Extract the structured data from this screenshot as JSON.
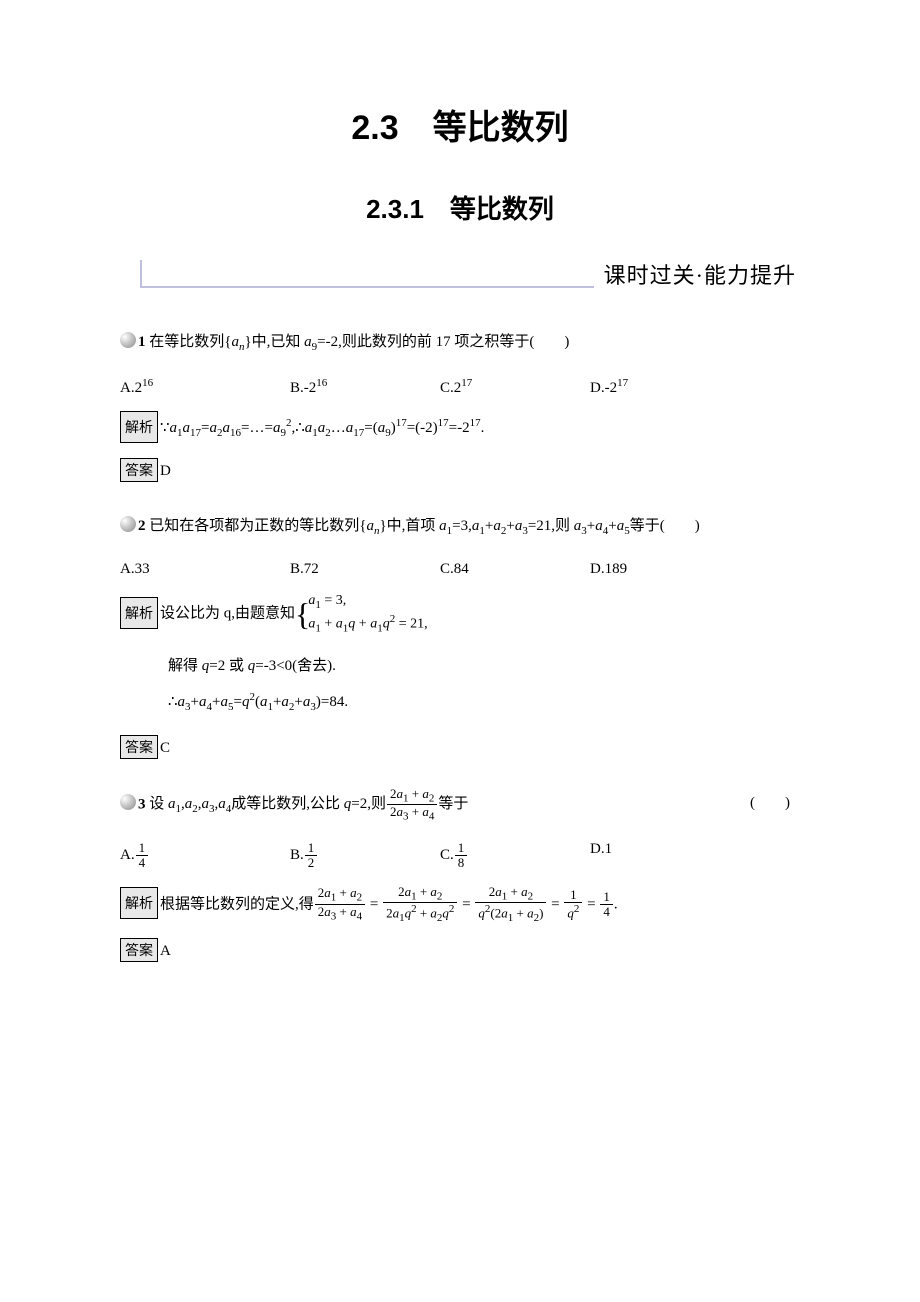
{
  "title": {
    "main": "2.3　等比数列",
    "sub": "2.3.1　等比数列",
    "section": "课时过关·能力提升"
  },
  "labels": {
    "analysis": "解析",
    "answer": "答案"
  },
  "q1": {
    "num": "1",
    "stem_before": " 在等比数列{",
    "stem_an": "a",
    "stem_after": "}中,已知 ",
    "stem_a9": "a",
    "stem_eq": "=-2,则此数列的前 17 项之积等于(　　)",
    "opts": {
      "A": "A.2",
      "A_sup": "16",
      "B": "B.-2",
      "B_sup": "16",
      "C": "C.2",
      "C_sup": "17",
      "D": "D.-2",
      "D_sup": "17"
    },
    "analysis": "∵a₁a₁₇=a₂a₁₆=…=a₉²,∴a₁a₂…a₁₇=(a₉)¹⁷=(-2)¹⁷=-2¹⁷.",
    "answer": "D"
  },
  "q2": {
    "num": "2",
    "stem": " 已知在各项都为正数的等比数列{aₙ}中,首项 a₁=3,a₁+a₂+a₃=21,则 a₃+a₄+a₅等于(　　)",
    "opts": {
      "A": "A.33",
      "B": "B.72",
      "C": "C.84",
      "D": "D.189"
    },
    "analysis_prefix": "设公比为 q,由题意知",
    "brace_line1": "a₁ = 3,",
    "brace_line2": "a₁ + a₁q + a₁q² = 21,",
    "line2": "解得 q=2 或 q=-3<0(舍去).",
    "line3": "∴a₃+a₄+a₅=q²(a₁+a₂+a₃)=84.",
    "answer": "C"
  },
  "q3": {
    "num": "3",
    "stem_before": " 设 a₁,a₂,a₃,a₄成等比数列,公比 q=2,则",
    "frac_top": "2a₁ + a₂",
    "frac_bot": "2a₃ + a₄",
    "stem_after": "等于",
    "paren": "(　　)",
    "opts": {
      "A_num": "1",
      "A_den": "4",
      "B_num": "1",
      "B_den": "2",
      "C_num": "1",
      "C_den": "8",
      "D": "D.1"
    },
    "analysis_prefix": "根据等比数列的定义,得",
    "step1_top": "2a₁ + a₂",
    "step1_bot": "2a₃ + a₄",
    "step2_top": "2a₁ + a₂",
    "step2_bot": "2a₁q² + a₂q²",
    "step3_top": "2a₁ + a₂",
    "step3_bot": "q²(2a₁ + a₂)",
    "step4_top": "1",
    "step4_bot": "q²",
    "step5_top": "1",
    "step5_bot": "4",
    "answer": "A"
  }
}
